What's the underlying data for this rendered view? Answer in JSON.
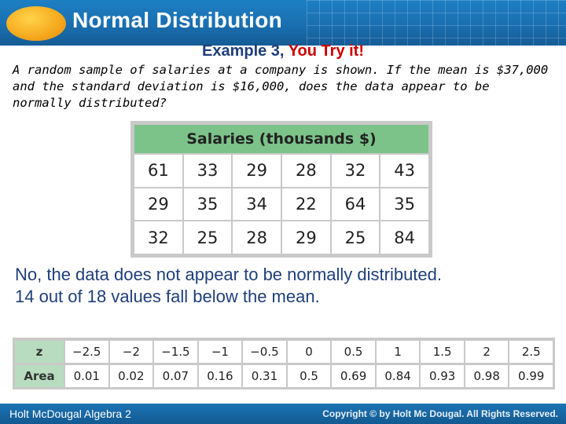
{
  "header": {
    "title": "Normal Distribution"
  },
  "example": {
    "label": "Example 3,",
    "try_it": "You Try it!"
  },
  "problem_text": "A random sample of salaries at a company is shown. If the mean is $37,000 and the standard deviation is $16,000, does the data appear to be normally distributed?",
  "salaries_table": {
    "title": "Salaries (thousands $)",
    "rows": [
      [
        "61",
        "33",
        "29",
        "28",
        "32",
        "43"
      ],
      [
        "29",
        "35",
        "34",
        "22",
        "64",
        "35"
      ],
      [
        "32",
        "25",
        "28",
        "29",
        "25",
        "84"
      ]
    ]
  },
  "answer": {
    "line1": "No, the data does not appear to be normally distributed.",
    "line2": "14 out of 18 values fall below the mean."
  },
  "z_table": {
    "z_label": "z",
    "area_label": "Area",
    "z_values": [
      "−2.5",
      "−2",
      "−1.5",
      "−1",
      "−0.5",
      "0",
      "0.5",
      "1",
      "1.5",
      "2",
      "2.5"
    ],
    "area_values": [
      "0.01",
      "0.02",
      "0.07",
      "0.16",
      "0.31",
      "0.5",
      "0.69",
      "0.84",
      "0.93",
      "0.98",
      "0.99"
    ]
  },
  "footer": {
    "left": "Holt McDougal Algebra 2",
    "right": "Copyright © by Holt Mc Dougal. All Rights Reserved."
  },
  "colors": {
    "header_blue": "#1a6fb0",
    "title_green": "#7cc38a",
    "answer_blue": "#1f3f7a",
    "try_red": "#cc0000"
  }
}
